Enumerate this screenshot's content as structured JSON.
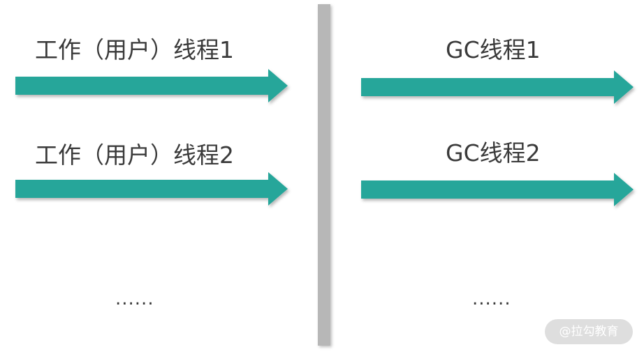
{
  "left": {
    "threads": [
      {
        "label": "工作（用户）线程1"
      },
      {
        "label": "工作（用户）线程2"
      }
    ],
    "ellipsis": "......"
  },
  "right": {
    "threads": [
      {
        "label": "GC线程1"
      },
      {
        "label": "GC线程2"
      }
    ],
    "ellipsis": "......"
  },
  "watermark": "@拉勾教育",
  "colors": {
    "arrow": "#26a69a",
    "divider": "#b7b7b7",
    "text": "#3a3a3a"
  }
}
